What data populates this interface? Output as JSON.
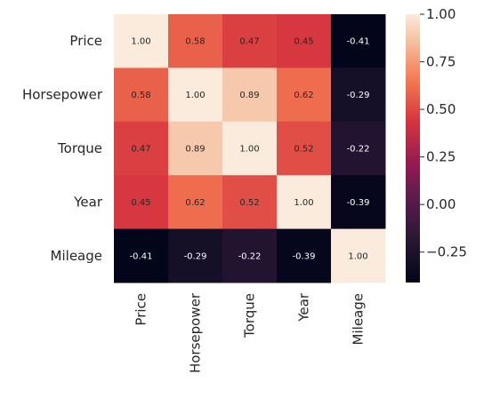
{
  "chart_data": {
    "type": "heatmap",
    "title": "",
    "xlabel": "",
    "ylabel": "",
    "rows": [
      "Price",
      "Horsepower",
      "Torque",
      "Year",
      "Mileage"
    ],
    "columns": [
      "Price",
      "Horsepower",
      "Torque",
      "Year",
      "Mileage"
    ],
    "values": [
      [
        1.0,
        0.58,
        0.47,
        0.45,
        -0.41
      ],
      [
        0.58,
        1.0,
        0.89,
        0.62,
        -0.29
      ],
      [
        0.47,
        0.89,
        1.0,
        0.52,
        -0.22
      ],
      [
        0.45,
        0.62,
        0.52,
        1.0,
        -0.39
      ],
      [
        -0.41,
        -0.29,
        -0.22,
        -0.39,
        1.0
      ]
    ],
    "value_labels": [
      [
        "1.00",
        "0.58",
        "0.47",
        "0.45",
        "-0.41"
      ],
      [
        "0.58",
        "1.00",
        "0.89",
        "0.62",
        "-0.29"
      ],
      [
        "0.47",
        "0.89",
        "1.00",
        "0.52",
        "-0.22"
      ],
      [
        "0.45",
        "0.62",
        "0.52",
        "1.00",
        "-0.39"
      ],
      [
        "-0.41",
        "-0.29",
        "-0.22",
        "-0.39",
        "1.00"
      ]
    ],
    "colorbar": {
      "min": -0.41,
      "max": 1.0,
      "ticks": [
        1.0,
        0.75,
        0.5,
        0.25,
        0.0,
        -0.25
      ],
      "tick_labels": [
        "1.00",
        "0.75",
        "0.50",
        "0.25",
        "0.00",
        "−0.25"
      ],
      "colormap": "rocket"
    }
  }
}
